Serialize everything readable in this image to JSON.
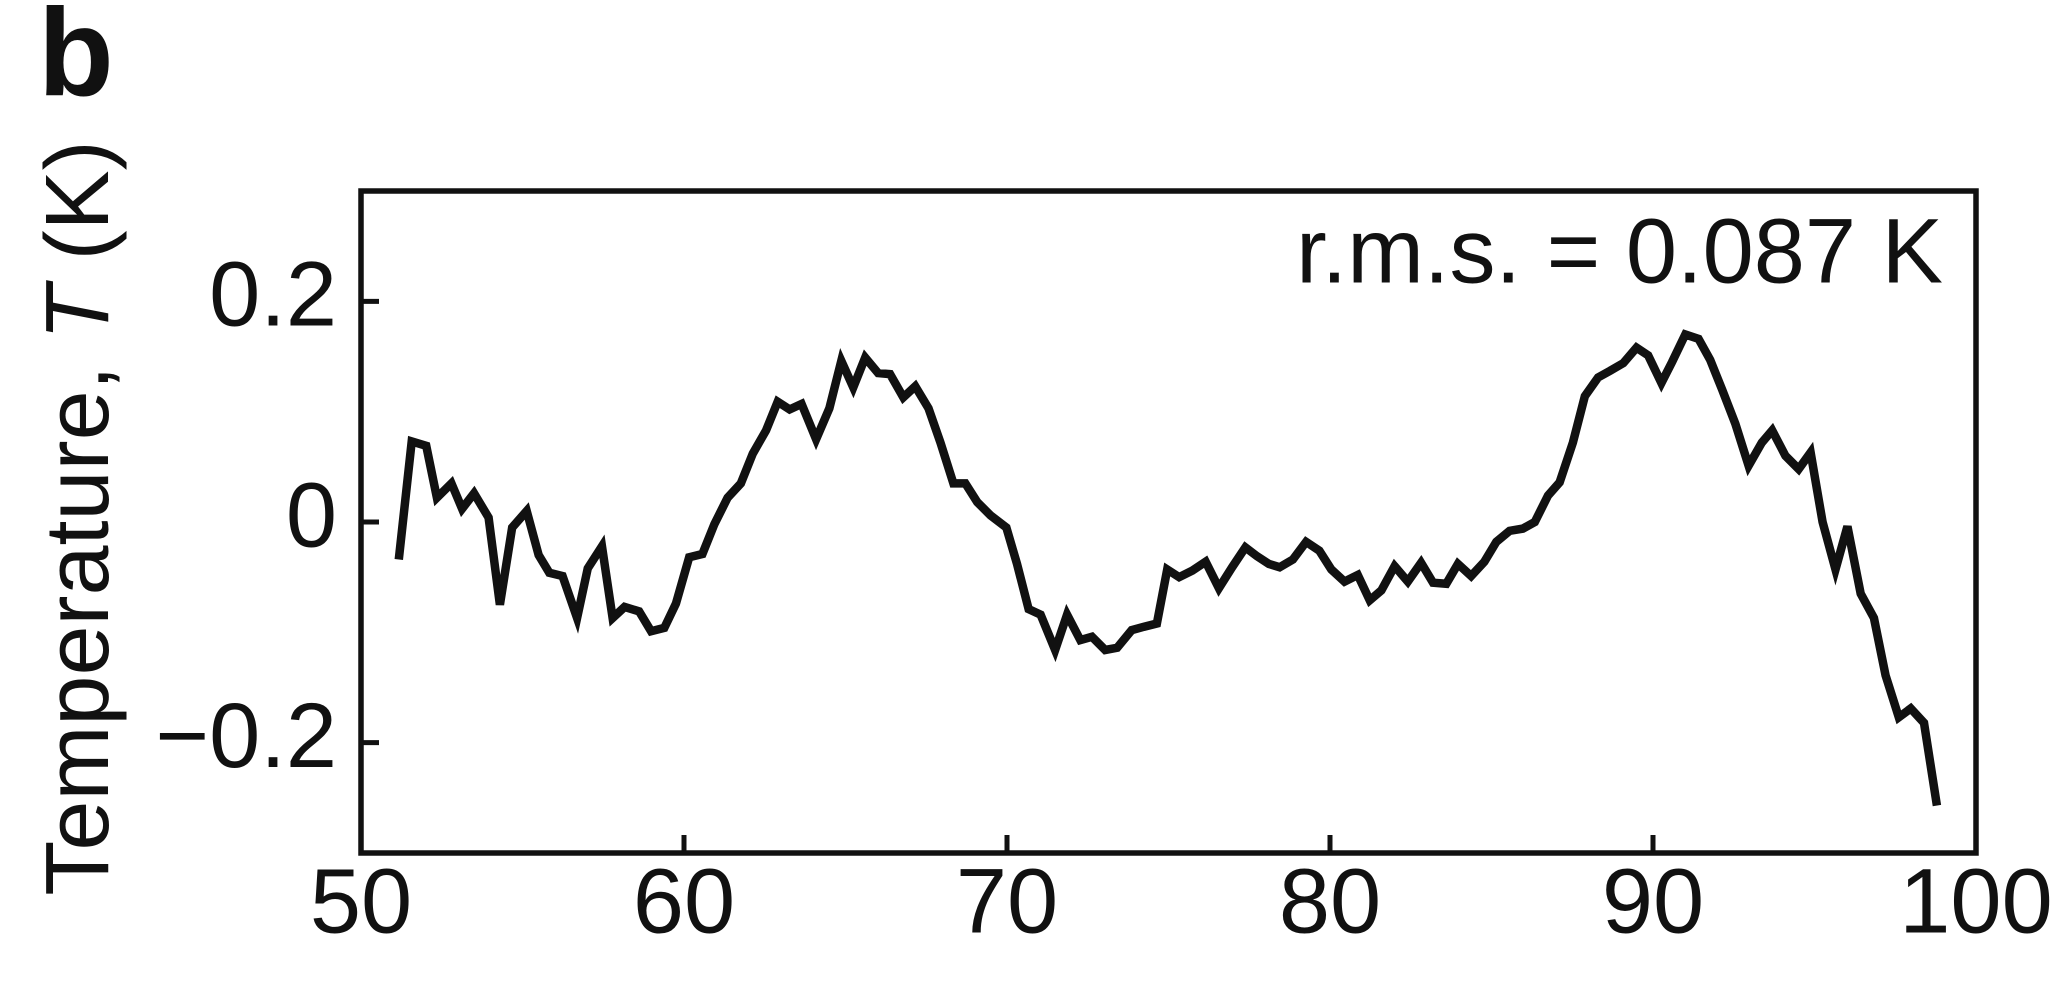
{
  "chart_data": {
    "type": "line",
    "panel_label": "b",
    "ylabel_parts": [
      "Temperature, ",
      "T",
      " (K)"
    ],
    "annotation": "r.m.s. = 0.087 K",
    "color": "#111111",
    "xlim": [
      50,
      100
    ],
    "xticks": [
      50,
      60,
      70,
      80,
      90,
      100
    ],
    "ylim": [
      -0.3,
      0.3
    ],
    "yticks": [
      {
        "value": -0.2,
        "label": "−0.2"
      },
      0,
      0.2
    ],
    "x": [
      51.17,
      51.57,
      52.02,
      52.35,
      52.8,
      53.13,
      53.5,
      53.95,
      54.3,
      54.68,
      55.13,
      55.5,
      55.83,
      56.24,
      56.69,
      57.02,
      57.46,
      57.79,
      58.16,
      58.61,
      58.98,
      59.39,
      59.75,
      60.16,
      60.57,
      60.94,
      61.35,
      61.76,
      62.13,
      62.54,
      62.9,
      63.27,
      63.64,
      64.09,
      64.5,
      64.87,
      65.24,
      65.61,
      66.01,
      66.38,
      66.79,
      67.16,
      67.57,
      67.94,
      68.34,
      68.71,
      69.08,
      69.49,
      69.98,
      70.31,
      70.67,
      71.04,
      71.49,
      71.86,
      72.27,
      72.63,
      73.04,
      73.41,
      73.86,
      74.23,
      74.64,
      74.96,
      75.33,
      75.74,
      76.15,
      76.56,
      76.97,
      77.38,
      77.74,
      78.11,
      78.44,
      78.85,
      79.26,
      79.67,
      80.04,
      80.45,
      80.86,
      81.23,
      81.59,
      82.0,
      82.41,
      82.82,
      83.19,
      83.6,
      83.96,
      84.37,
      84.78,
      85.15,
      85.56,
      85.97,
      86.34,
      86.75,
      87.11,
      87.52,
      87.89,
      88.3,
      88.67,
      89.08,
      89.49,
      89.85,
      90.26,
      90.59,
      91.0,
      91.41,
      91.77,
      92.14,
      92.55,
      92.96,
      93.37,
      93.69,
      94.1,
      94.51,
      94.88,
      95.25,
      95.65,
      96.02,
      96.43,
      96.84,
      97.2,
      97.61,
      97.98,
      98.39,
      98.79
    ],
    "values": [
      -0.034,
      0.073,
      0.069,
      0.022,
      0.035,
      0.012,
      0.026,
      0.004,
      -0.075,
      -0.005,
      0.01,
      -0.03,
      -0.046,
      -0.049,
      -0.087,
      -0.042,
      -0.022,
      -0.087,
      -0.077,
      -0.081,
      -0.099,
      -0.096,
      -0.074,
      -0.032,
      -0.029,
      -0.002,
      0.022,
      0.035,
      0.062,
      0.083,
      0.109,
      0.102,
      0.107,
      0.075,
      0.103,
      0.146,
      0.122,
      0.149,
      0.135,
      0.134,
      0.113,
      0.123,
      0.103,
      0.072,
      0.035,
      0.035,
      0.018,
      0.006,
      -0.005,
      -0.038,
      -0.079,
      -0.084,
      -0.116,
      -0.084,
      -0.107,
      -0.104,
      -0.116,
      -0.114,
      -0.098,
      -0.095,
      -0.092,
      -0.043,
      -0.05,
      -0.044,
      -0.036,
      -0.06,
      -0.041,
      -0.023,
      -0.031,
      -0.038,
      -0.041,
      -0.034,
      -0.018,
      -0.026,
      -0.043,
      -0.054,
      -0.048,
      -0.071,
      -0.062,
      -0.04,
      -0.054,
      -0.037,
      -0.055,
      -0.056,
      -0.038,
      -0.049,
      -0.036,
      -0.018,
      -0.008,
      -0.006,
      0.0,
      0.024,
      0.036,
      0.072,
      0.114,
      0.131,
      0.137,
      0.144,
      0.158,
      0.151,
      0.126,
      0.145,
      0.17,
      0.166,
      0.147,
      0.12,
      0.089,
      0.051,
      0.072,
      0.083,
      0.06,
      0.048,
      0.063,
      0.0,
      -0.043,
      -0.004,
      -0.065,
      -0.087,
      -0.139,
      -0.177,
      -0.169,
      -0.182,
      -0.257
    ]
  }
}
